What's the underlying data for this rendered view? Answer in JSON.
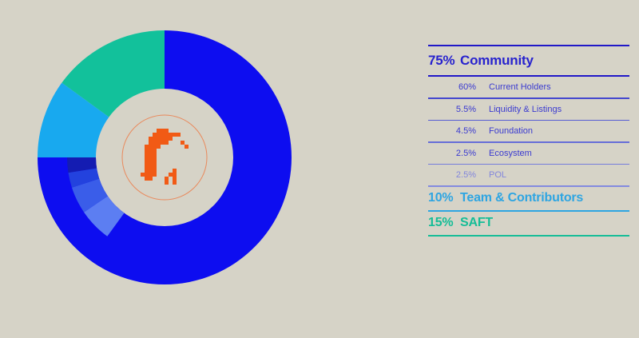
{
  "background": "#D6D3C7",
  "chart_data": {
    "type": "donut",
    "direction": "clockwise",
    "start_angle_deg": 0,
    "outer_segments": [
      {
        "label": "Community",
        "pct": 75,
        "color": "#0D0DF0"
      },
      {
        "label": "Team & Contributors",
        "pct": 10,
        "color": "#18A9EF"
      },
      {
        "label": "SAFT",
        "pct": 15,
        "color": "#12C19B"
      }
    ],
    "inner_segments": [
      {
        "label": "Current Holders",
        "pct": 60,
        "color": "#0D0DF0"
      },
      {
        "label": "Liquidity & Listings",
        "pct": 5.5,
        "color": "#5C7EF2"
      },
      {
        "label": "Foundation",
        "pct": 4.5,
        "color": "#3A5DE9"
      },
      {
        "label": "Ecosystem",
        "pct": 2.5,
        "color": "#2342DE"
      },
      {
        "label": "POL",
        "pct": 2.5,
        "color": "#141CB2"
      }
    ],
    "center_icon": {
      "name": "pixel-flame-icon",
      "color": "#F15A15",
      "ring_color": "#E9895C"
    }
  },
  "legend": {
    "top_line_color": "#2018C8",
    "rows": [
      {
        "type": "header",
        "pct": "75%",
        "label": "Community",
        "text_color": "#2823CE",
        "line_color": "#2018C8",
        "line_weight": "thick"
      },
      {
        "type": "sub",
        "pct": "60%",
        "label": "Current Holders",
        "text_color": "#3A3AD0",
        "line_color": "#4447CE",
        "line_weight": "thin"
      },
      {
        "type": "sub",
        "pct": "5.5%",
        "label": "Liquidity & Listings",
        "text_color": "#3A3AD0",
        "line_color": "#565CD3",
        "line_weight": "thin"
      },
      {
        "type": "sub",
        "pct": "4.5%",
        "label": "Foundation",
        "text_color": "#3A3AD0",
        "line_color": "#666DD8",
        "line_weight": "thin"
      },
      {
        "type": "sub",
        "pct": "2.5%",
        "label": "Ecosystem",
        "text_color": "#3A3AD0",
        "line_color": "#757CDC",
        "line_weight": "thin"
      },
      {
        "type": "sub",
        "pct": "2.5%",
        "label": "POL",
        "text_color": "#8286DC",
        "line_color": "#838ADF",
        "line_weight": "thin"
      },
      {
        "type": "tail",
        "pct": "10%",
        "label": "Team & Contributors",
        "text_color": "#2EA5E2",
        "line_color": "#2EA5E2",
        "line_weight": "thick"
      },
      {
        "type": "tail",
        "pct": "15%",
        "label": "SAFT",
        "text_color": "#15BD97",
        "line_color": "#15BD97",
        "line_weight": "thick"
      }
    ]
  }
}
